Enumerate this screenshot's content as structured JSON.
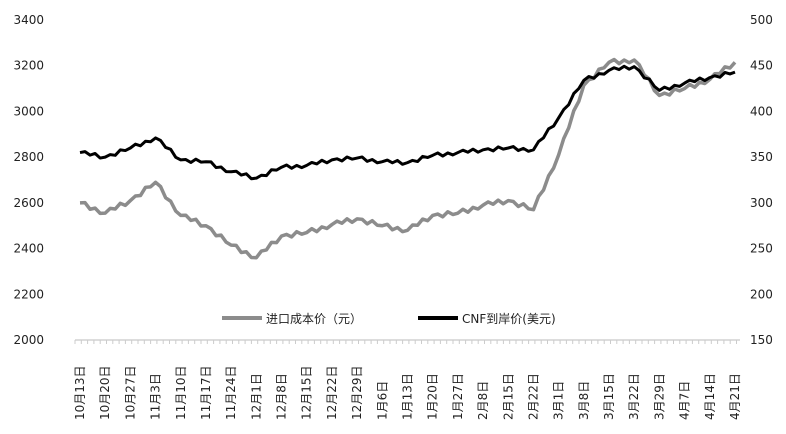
{
  "chart_data": {
    "type": "line",
    "title": "",
    "categories": [
      "10月13日",
      "10月20日",
      "10月27日",
      "11月3日",
      "11月10日",
      "11月17日",
      "11月24日",
      "12月1日",
      "12月8日",
      "12月15日",
      "12月22日",
      "12月29日",
      "1月6日",
      "1月13日",
      "1月20日",
      "1月27日",
      "2月8日",
      "2月15日",
      "2月22日",
      "3月1日",
      "3月8日",
      "3月15日",
      "3月22日",
      "3月29日",
      "4月7日",
      "4月14日",
      "4月21日"
    ],
    "left_axis": {
      "min": 2000,
      "max": 3400,
      "step": 200,
      "ticks": [
        2000,
        2200,
        2400,
        2600,
        2800,
        3000,
        3200,
        3400
      ]
    },
    "right_axis": {
      "min": 150,
      "max": 500,
      "step": 50,
      "ticks": [
        150,
        200,
        250,
        300,
        350,
        400,
        450,
        500
      ]
    },
    "grid": false,
    "legend_placement": "bottom-inside",
    "series": [
      {
        "name": "进口成本价（元）",
        "axis": "left",
        "color": "#8c8c8c",
        "values": [
          2600,
          2555,
          2610,
          2690,
          2545,
          2500,
          2415,
          2360,
          2455,
          2470,
          2505,
          2530,
          2500,
          2480,
          2545,
          2555,
          2590,
          2610,
          2570,
          2810,
          3115,
          3215,
          3225,
          3070,
          3100,
          3140,
          3215
        ]
      },
      {
        "name": "CNF到岸价(美元)",
        "axis": "right",
        "color": "#000000",
        "values": [
          355,
          350,
          360,
          371,
          347,
          345,
          334,
          327,
          339,
          341,
          347,
          349,
          345,
          344,
          352,
          355,
          358,
          360,
          358,
          393,
          434,
          445,
          449,
          423,
          431,
          437,
          443
        ]
      }
    ]
  }
}
